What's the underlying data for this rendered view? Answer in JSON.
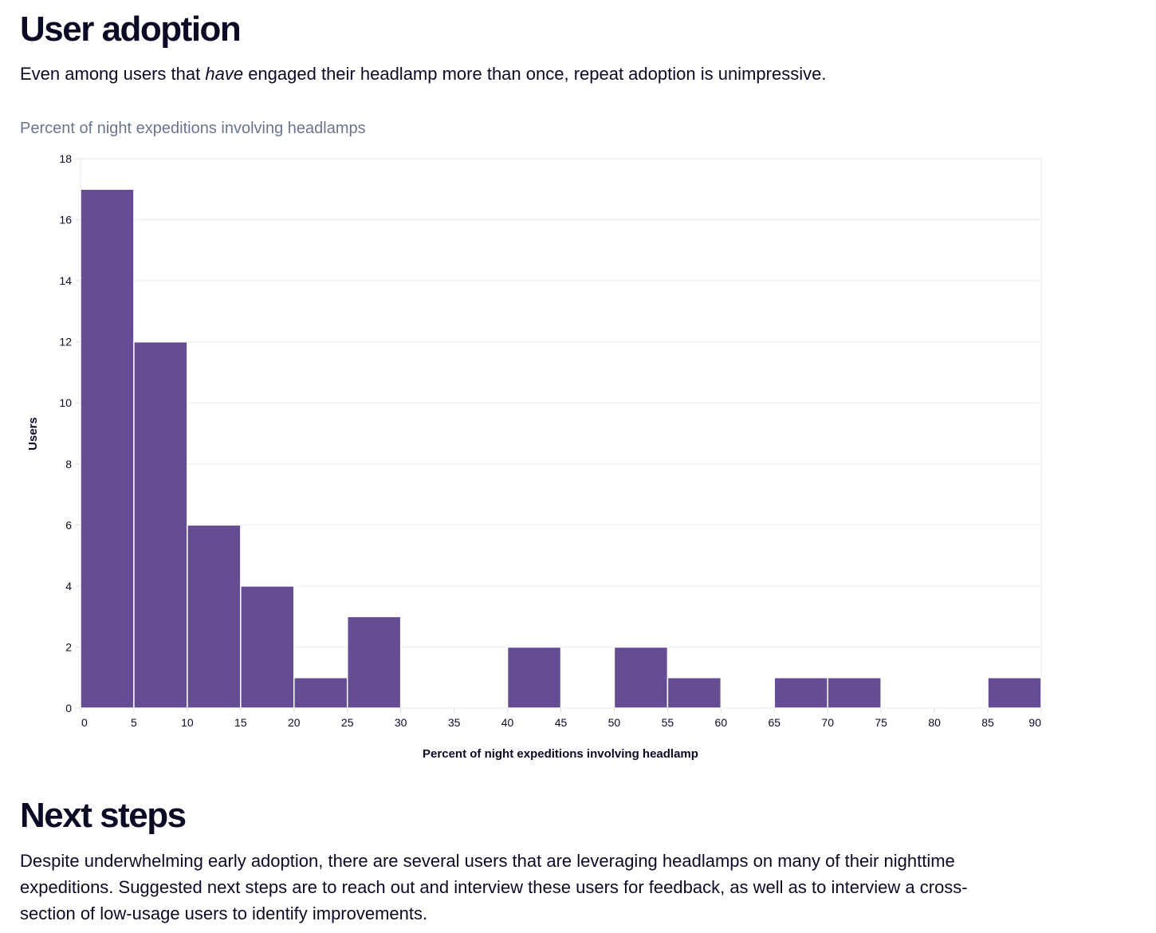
{
  "section1": {
    "title": "User adoption",
    "text_before": "Even among users that ",
    "text_em": "have",
    "text_after": " engaged their headlamp more than once, repeat adoption is unimpressive."
  },
  "chart_data": {
    "type": "bar",
    "title": "Percent of night expeditions involving headlamps",
    "xlabel": "Percent of night expeditions involving headlamp",
    "ylabel": "Users",
    "bin_edges": [
      0,
      5,
      10,
      15,
      20,
      25,
      30,
      35,
      40,
      45,
      50,
      55,
      60,
      65,
      70,
      75,
      80,
      85,
      90
    ],
    "values": [
      17,
      12,
      6,
      4,
      1,
      3,
      0,
      0,
      2,
      0,
      2,
      1,
      0,
      1,
      1,
      0,
      0,
      1
    ],
    "xlim": [
      0,
      90
    ],
    "ylim": [
      0,
      18
    ],
    "xticks": [
      "0",
      "5",
      "10",
      "15",
      "20",
      "25",
      "30",
      "35",
      "40",
      "45",
      "50",
      "55",
      "60",
      "65",
      "70",
      "75",
      "80",
      "85",
      "90"
    ],
    "yticks": [
      "0",
      "2",
      "4",
      "6",
      "8",
      "10",
      "12",
      "14",
      "16",
      "18"
    ],
    "grid": true,
    "bar_color": "#654c93"
  },
  "section2": {
    "title": "Next steps",
    "text": "Despite underwhelming early adoption, there are several users that are leveraging headlamps on many of their nighttime expeditions. Suggested next steps are to reach out and interview these users for feedback, as well as to interview a cross-section of low-usage users to identify improvements."
  }
}
